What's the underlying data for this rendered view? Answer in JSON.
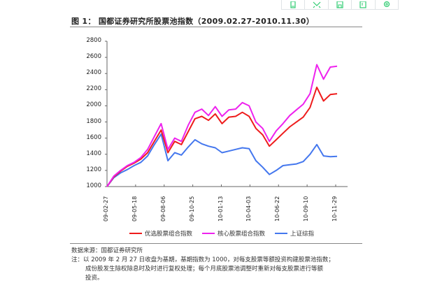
{
  "toolbar": {
    "icons": [
      "tablet-icon",
      "expand-icon",
      "save-icon",
      "export-icon",
      "settings-icon"
    ],
    "color": "#2ecc71"
  },
  "figure": {
    "title": "图 1： 国都证券研究所股票池指数（2009.02.27-2010.11.30）",
    "source": "数据来源：国都证券研究所",
    "note_line1": "注：以 2009 年 2 月 27 日收盘为基期，基期指数为 1000，对每支股票等额投资构建股票池指数；",
    "note_line2": "成份股发生除权除息时及时进行复权处理；每个月底股票池调整时重新对每支股票进行等额",
    "note_line3": "投资。"
  },
  "chart_data": {
    "type": "line",
    "title": "国都证券研究所股票池指数（2009.02.27-2010.11.30）",
    "xlabel": "",
    "ylabel": "",
    "ylim": [
      1000,
      2800
    ],
    "yticks": [
      "2800",
      "2600",
      "2400",
      "2200",
      "2000",
      "1800",
      "1600",
      "1400",
      "1200",
      "1000"
    ],
    "xticks": [
      "09-02-27",
      "09-05-18",
      "09-08-06",
      "09-10-25",
      "10-01-13",
      "10-04-03",
      "10-06-22",
      "10-09-10",
      "10-11-29"
    ],
    "grid": false,
    "legend_position": "bottom",
    "x": [
      "09-02-27",
      "09-03-17",
      "09-04-06",
      "09-04-26",
      "09-05-18",
      "09-06-06",
      "09-06-26",
      "09-07-16",
      "09-08-06",
      "09-08-20",
      "09-09-05",
      "09-09-25",
      "09-10-25",
      "09-11-10",
      "09-11-28",
      "09-12-18",
      "10-01-13",
      "10-02-05",
      "10-02-28",
      "10-03-16",
      "10-04-03",
      "10-04-20",
      "10-05-10",
      "10-06-01",
      "10-06-22",
      "10-07-10",
      "10-07-30",
      "10-08-20",
      "10-09-10",
      "10-09-30",
      "10-10-20",
      "10-11-05",
      "10-11-15",
      "10-11-29",
      "10-11-30"
    ],
    "series": [
      {
        "name": "优选股票组合指数",
        "color": "#ee1c1c",
        "values": [
          1000,
          1120,
          1190,
          1250,
          1290,
          1340,
          1420,
          1560,
          1700,
          1420,
          1560,
          1520,
          1680,
          1840,
          1870,
          1820,
          1900,
          1780,
          1860,
          1870,
          1920,
          1870,
          1720,
          1640,
          1500,
          1580,
          1660,
          1740,
          1800,
          1860,
          1980,
          2230,
          2060,
          2140,
          2150
        ]
      },
      {
        "name": "核心股票组合指数",
        "color": "#ee22ee",
        "values": [
          1000,
          1130,
          1200,
          1260,
          1300,
          1360,
          1460,
          1620,
          1780,
          1460,
          1600,
          1560,
          1760,
          1920,
          1960,
          1880,
          1990,
          1870,
          1950,
          1960,
          2040,
          2000,
          1800,
          1720,
          1560,
          1690,
          1780,
          1880,
          1950,
          2020,
          2150,
          2510,
          2330,
          2480,
          2490
        ]
      },
      {
        "name": "上证综指",
        "color": "#4477ee",
        "values": [
          1000,
          1110,
          1170,
          1210,
          1260,
          1300,
          1380,
          1520,
          1650,
          1320,
          1420,
          1390,
          1490,
          1580,
          1530,
          1500,
          1480,
          1420,
          1440,
          1460,
          1480,
          1470,
          1320,
          1240,
          1150,
          1200,
          1260,
          1270,
          1280,
          1310,
          1400,
          1520,
          1380,
          1370,
          1375
        ]
      }
    ]
  },
  "legend": [
    {
      "label": "优选股票组合指数",
      "color": "#ee1c1c"
    },
    {
      "label": "核心股票组合指数",
      "color": "#ee22ee"
    },
    {
      "label": "上证综指",
      "color": "#4477ee"
    }
  ]
}
